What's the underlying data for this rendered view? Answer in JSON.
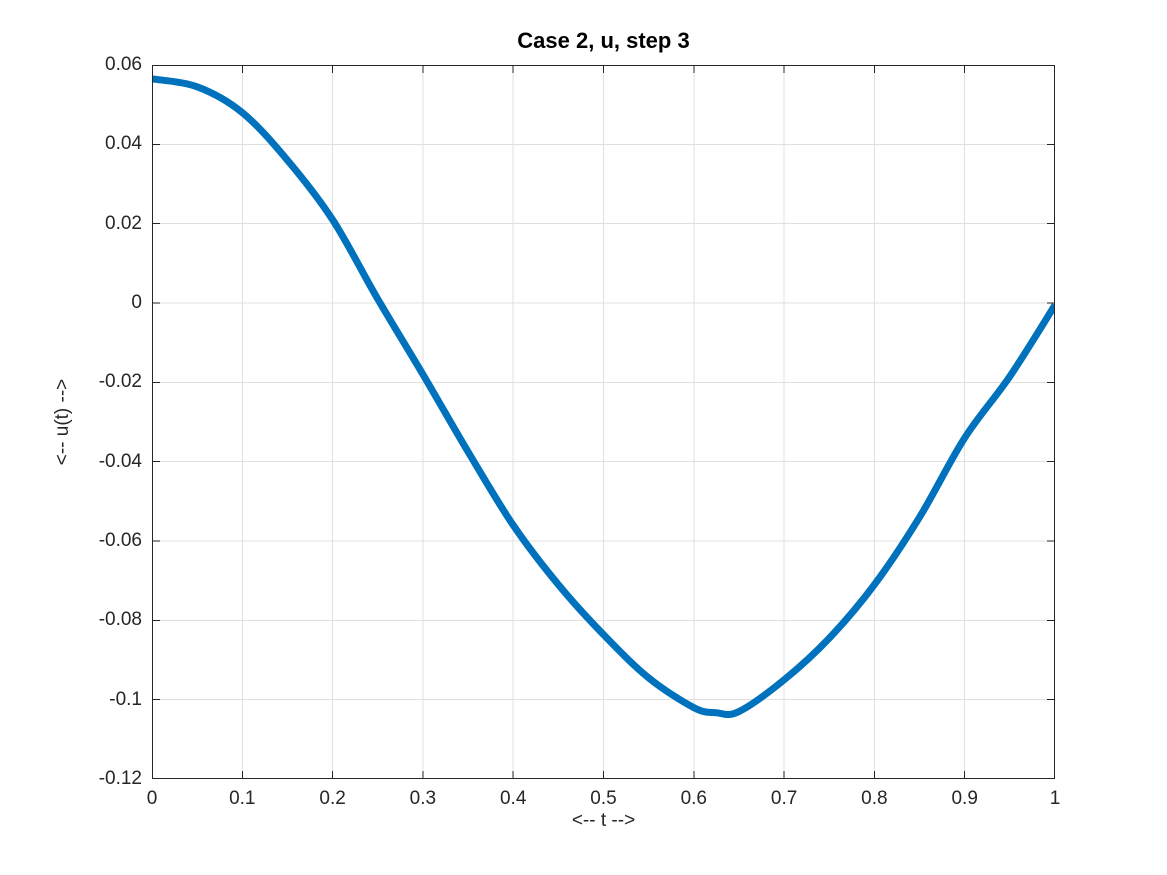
{
  "chart_data": {
    "type": "line",
    "title": "Case 2, u, step 3",
    "xlabel": "<-- t -->",
    "ylabel": "<-- u(t) -->",
    "xlim": [
      0,
      1
    ],
    "ylim": [
      -0.12,
      0.06
    ],
    "xticks": [
      0,
      0.1,
      0.2,
      0.3,
      0.4,
      0.5,
      0.6,
      0.7,
      0.8,
      0.9,
      1
    ],
    "xtick_labels": [
      "0",
      "0.1",
      "0.2",
      "0.3",
      "0.4",
      "0.5",
      "0.6",
      "0.7",
      "0.8",
      "0.9",
      "1"
    ],
    "yticks": [
      -0.12,
      -0.1,
      -0.08,
      -0.06,
      -0.04,
      -0.02,
      0,
      0.02,
      0.04,
      0.06
    ],
    "ytick_labels": [
      "-0.12",
      "-0.1",
      "-0.08",
      "-0.06",
      "-0.04",
      "-0.02",
      "0",
      "0.02",
      "0.04",
      "0.06"
    ],
    "grid": true,
    "legend": null,
    "series": [
      {
        "name": "u",
        "x": [
          0,
          0.05,
          0.1,
          0.15,
          0.2,
          0.25,
          0.3,
          0.35,
          0.4,
          0.45,
          0.5,
          0.55,
          0.6,
          0.625,
          0.65,
          0.7,
          0.75,
          0.8,
          0.85,
          0.9,
          0.95,
          1.0
        ],
        "y": [
          0.0565,
          0.0545,
          0.048,
          0.036,
          0.021,
          0.001,
          -0.018,
          -0.0375,
          -0.056,
          -0.071,
          -0.0836,
          -0.0945,
          -0.102,
          -0.1033,
          -0.103,
          -0.095,
          -0.0845,
          -0.071,
          -0.054,
          -0.034,
          -0.0185,
          -0.0005
        ]
      }
    ],
    "colors": {
      "line": "#0072BD",
      "axis": "#262626",
      "grid": "#e0e0e0",
      "title": "#000000",
      "tick_text": "#262626"
    },
    "line_width": 7,
    "tick_length": 8
  }
}
